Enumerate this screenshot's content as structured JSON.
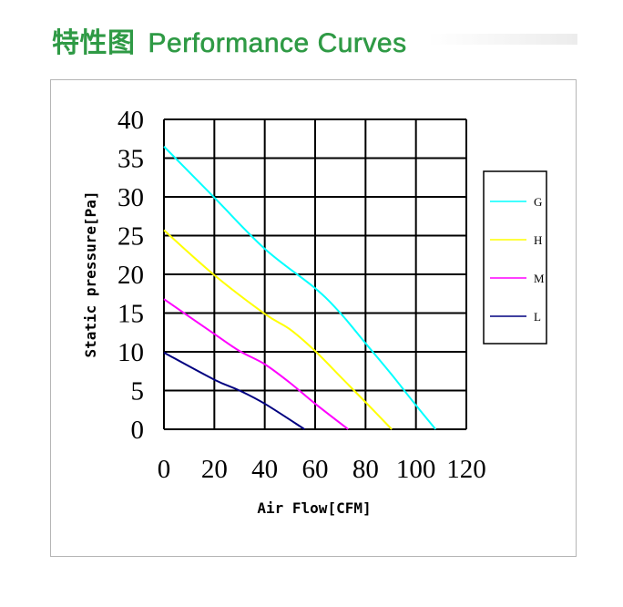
{
  "header": {
    "title_cn": "特性图",
    "title_en": "Performance Curves"
  },
  "chart_data": {
    "type": "line",
    "title": "",
    "xlabel": "Air Flow[CFM]",
    "ylabel": "Static pressure[Pa]",
    "xlim": [
      0,
      120
    ],
    "ylim": [
      0,
      40
    ],
    "xticks": [
      0,
      20,
      40,
      60,
      80,
      100,
      120
    ],
    "yticks": [
      0,
      5,
      10,
      15,
      20,
      25,
      30,
      35,
      40
    ],
    "grid": true,
    "legend_placement": "right",
    "series": [
      {
        "name": "G",
        "color": "#00ffff",
        "x": [
          0,
          20,
          40,
          60,
          70,
          80,
          90,
          100,
          107.8
        ],
        "y": [
          36.5,
          29.9,
          23.3,
          18.2,
          15,
          11.1,
          7.2,
          3.1,
          0
        ]
      },
      {
        "name": "H",
        "color": "#ffff00",
        "x": [
          0,
          20,
          40,
          50,
          60,
          70,
          80,
          90.4
        ],
        "y": [
          25.7,
          19.9,
          14.9,
          12.9,
          10.1,
          6.8,
          3.5,
          0
        ]
      },
      {
        "name": "M",
        "color": "#ff00ff",
        "x": [
          0,
          20,
          30,
          40,
          50,
          60,
          73.1
        ],
        "y": [
          16.8,
          12.3,
          10.1,
          8.4,
          6.0,
          3.3,
          0
        ]
      },
      {
        "name": "L",
        "color": "#000080",
        "x": [
          0,
          20,
          30,
          40,
          55.8
        ],
        "y": [
          9.9,
          6.4,
          5.0,
          3.3,
          0
        ]
      }
    ]
  }
}
